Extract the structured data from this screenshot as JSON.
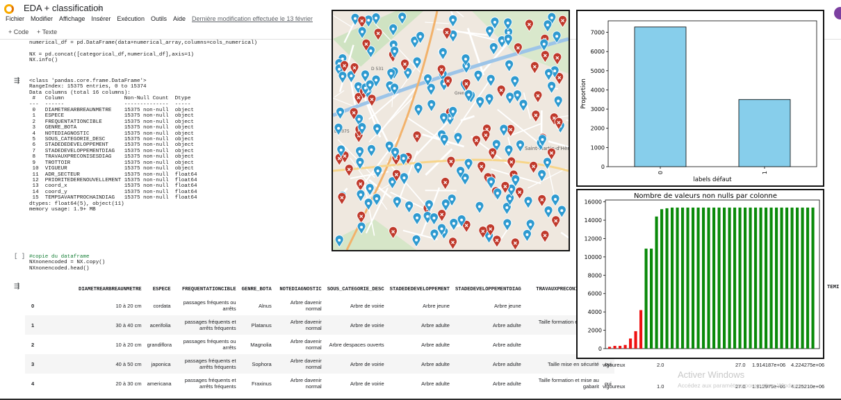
{
  "app": {
    "title": "EDA + classification",
    "menu": [
      "Fichier",
      "Modifier",
      "Affichage",
      "Insérer",
      "Exécution",
      "Outils",
      "Aide"
    ],
    "last_modified": "Dernière modification effectuée le 13 février",
    "toolbar": {
      "code": "+ Code",
      "text": "+ Texte"
    }
  },
  "cell1": {
    "lines": [
      "numerical_df = pd.DataFrame(data=numerical_array,columns=cols_numerical)",
      "",
      "NX = pd.concat([categorical_df,numerical_df],axis=1)",
      "NX.info()"
    ],
    "output": [
      "<class 'pandas.core.frame.DataFrame'>",
      "RangeIndex: 15375 entries, 0 to 15374",
      "Data columns (total 16 columns):",
      " #   Column                   Non-Null Count  Dtype  ",
      "---  ------                   --------------  -----  ",
      " 0   DIAMETREARBREAUNMETRE    15375 non-null  object ",
      " 1   ESPECE                   15375 non-null  object ",
      " 2   FREQUENTATIONCIBLE       15375 non-null  object ",
      " 3   GENRE_BOTA               15375 non-null  object ",
      " 4   NOTEDIAGNOSTIC           15375 non-null  object ",
      " 5   SOUS_CATEGORIE_DESC      15375 non-null  object ",
      " 6   STADEDEDEVELOPPEMENT     15375 non-null  object ",
      " 7   STADEDEVELOPPEMENTDIAG   15375 non-null  object ",
      " 8   TRAVAUXPRECONISESDIAG    15375 non-null  object ",
      " 9   TROTTOIR                 15375 non-null  object ",
      " 10  VIGUEUR                  15375 non-null  object ",
      " 11  ADR_SECTEUR              15375 non-null  float64",
      " 12  PRIORITEDERENOUVELLEMENT 15375 non-null  float64",
      " 13  coord_x                  15375 non-null  float64",
      " 14  coord_y                  15375 non-null  float64",
      " 15  TEMPSAVANTPROCHAINDIAG   15375 non-null  float64",
      "dtypes: float64(5), object(11)",
      "memory usage: 1.9+ MB"
    ]
  },
  "cell2": {
    "bracket": "[ ]",
    "lines": [
      "#copie du dataframe",
      "NXnonencoded = NX.copy()",
      "NXnonencoded.head()"
    ]
  },
  "dataframe": {
    "columns": [
      "",
      "DIAMETREARBREAUNMETRE",
      "ESPECE",
      "FREQUENTATIONCIBLE",
      "GENRE_BOTA",
      "NOTEDIAGNOSTIC",
      "SOUS_CATEGORIE_DESC",
      "STADEDEDEVELOPPEMENT",
      "STADEDEVELOPPEMENTDIAG",
      "TRAVAUXPRECONISESDIAG",
      "TR"
    ],
    "extra_header": "TEMI",
    "rows": [
      [
        "0",
        "10 à 20 cm",
        "cordata",
        "passages fréquents ou arrêts",
        "Alnus",
        "Arbre davenir normal",
        "Arbre de voirie",
        "Arbre jeune",
        "Arbre jeune",
        "Controle",
        ""
      ],
      [
        "1",
        "30 à 40 cm",
        "acerifolia",
        "passages fréquents et arrêts fréquents",
        "Platanus",
        "Arbre davenir normal",
        "Arbre de voirie",
        "Arbre adulte",
        "Arbre adulte",
        "Taille formation et mise au gabarit",
        ""
      ],
      [
        "2",
        "10 à 20 cm",
        "grandiflora",
        "passages fréquents ou arrêts",
        "Magnolia",
        "Arbre davenir normal",
        "Arbre despaces ouverts",
        "Arbre adulte",
        "Arbre adulte",
        "Controle",
        ""
      ],
      [
        "3",
        "40 à 50 cm",
        "japonica",
        "passages fréquents et arrêts fréquents",
        "Sophora",
        "Arbre davenir normal",
        "Arbre de voirie",
        "Arbre adulte",
        "Arbre adulte",
        "Taille mise en sécurité",
        "oui"
      ],
      [
        "4",
        "20 à 30 cm",
        "americana",
        "passages fréquents et arrêts fréquents",
        "Fraxinus",
        "Arbre davenir normal",
        "Arbre de voirie",
        "Arbre adulte",
        "Arbre adulte",
        "Taille formation et mise au gabarit",
        "oui"
      ]
    ],
    "tail_rows": [
      {
        "vigueur": "vigoureux",
        "adr": "2.0",
        "prio": "27.0",
        "x": "1.914187e+06",
        "y": "4.224275e+06"
      },
      {
        "vigueur": "vigoureux",
        "adr": "1.0",
        "prio": "27.0",
        "x": "1.912975e+06",
        "y": "4.225210e+06"
      }
    ]
  },
  "watermark": {
    "line1": "Activer Windows",
    "line2": "Accédez aux paramètres pour activer Windows."
  },
  "map": {
    "labels": [
      "Saint-Martin-d'Hères",
      "Grenoble",
      "D 531",
      "D 1075"
    ],
    "colors": {
      "healthy": "#2e9ad0",
      "defect": "#c0392b"
    }
  },
  "chart_data": [
    {
      "type": "bar",
      "title": "",
      "categories": [
        "0",
        "1"
      ],
      "values": [
        7280,
        3500
      ],
      "xlabel": "labels défaut",
      "ylabel": "Proportion",
      "ylim": [
        0,
        7600
      ],
      "yticks": [
        "0",
        "1000",
        "2000",
        "3000",
        "4000",
        "5000",
        "6000",
        "7000"
      ],
      "color": "#87ceeb"
    },
    {
      "type": "bar",
      "title": "Nombre de valeurs non nulls par colonne",
      "values": [
        200,
        300,
        300,
        400,
        1100,
        1900,
        4200,
        10900,
        10900,
        14400,
        15200,
        15300,
        15375,
        15375,
        15375,
        15375,
        15375,
        15375,
        15375,
        15375,
        15375,
        15375,
        15375,
        15375,
        15375,
        15375,
        15375,
        15375,
        15375,
        15375,
        15375,
        15375,
        15375,
        15375,
        15375,
        15375,
        15375,
        15375,
        15375,
        15375
      ],
      "red_count": 7,
      "ylim": [
        0,
        16200
      ],
      "yticks": [
        "0",
        "2000",
        "4000",
        "6000",
        "8000",
        "10000",
        "12000",
        "14000",
        "16000"
      ],
      "colors": {
        "low": "#ee1111",
        "high": "#0a8a0a"
      }
    }
  ]
}
